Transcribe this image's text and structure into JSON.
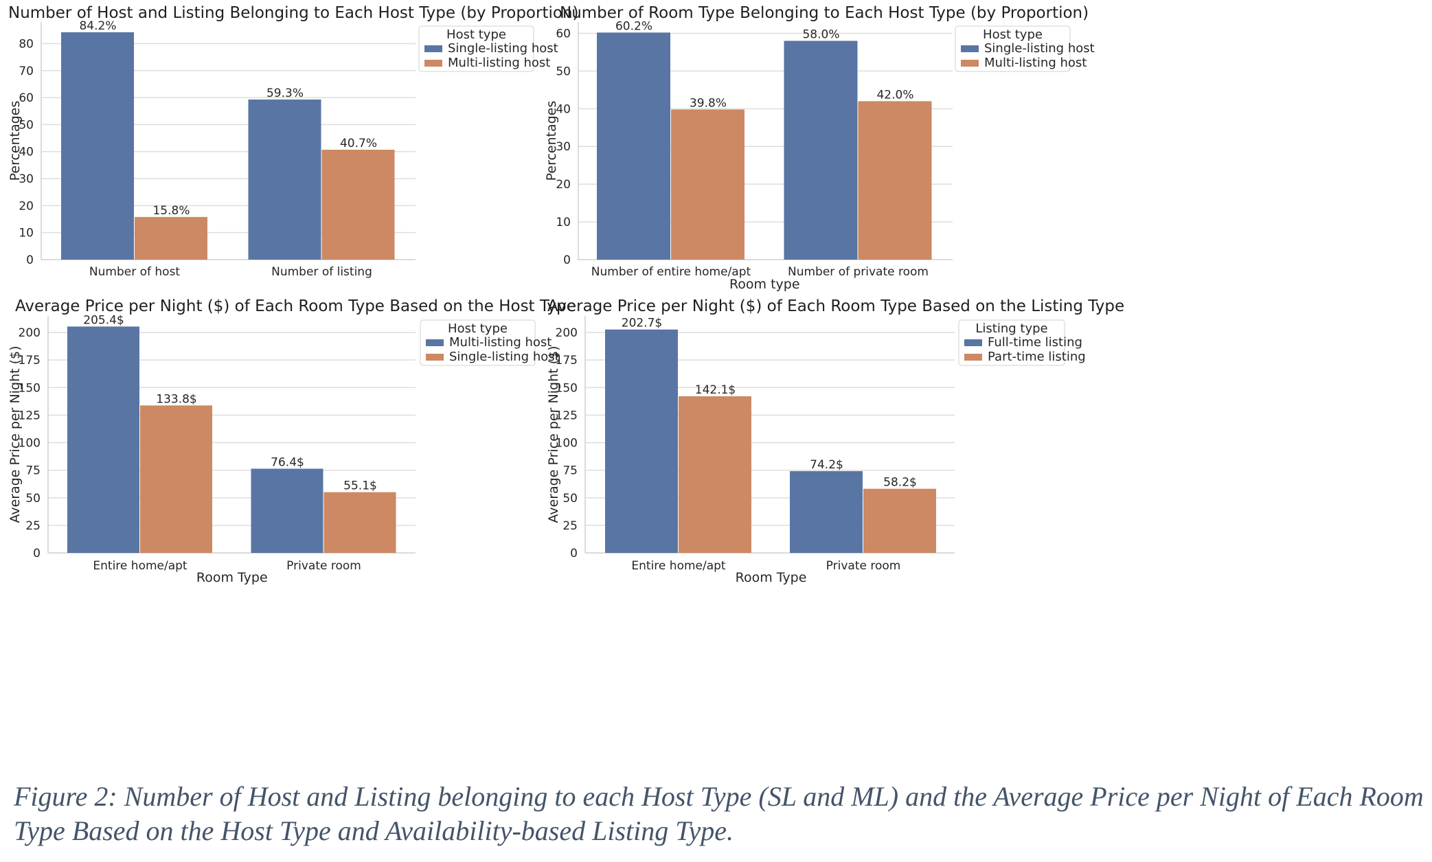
{
  "caption": "Figure 2: Number of Host and Listing belonging to each Host Type (SL and ML) and the Average Price per Night of Each Room Type Based on the Host Type and Availability-based Listing Type.",
  "colors": {
    "blue": "#5975a4",
    "orange": "#cc8963"
  },
  "chart_data": [
    {
      "type": "bar",
      "title": "Number of Host and Listing Belonging to Each Host Type (by Proportion)",
      "xlabel": "",
      "ylabel": "Percentages",
      "categories": [
        "Number of host",
        "Number of listing"
      ],
      "ylim": [
        0,
        88
      ],
      "yticks": [
        0,
        10,
        20,
        30,
        40,
        50,
        60,
        70,
        80
      ],
      "grid": true,
      "legend": {
        "title": "Host type",
        "placement": "top-right"
      },
      "series": [
        {
          "name": "Single-listing host",
          "values": [
            84.2,
            59.3
          ],
          "labels": [
            "84.2%",
            "59.3%"
          ]
        },
        {
          "name": "Multi-listing host",
          "values": [
            15.8,
            40.7
          ],
          "labels": [
            "15.8%",
            "40.7%"
          ]
        }
      ]
    },
    {
      "type": "bar",
      "title": "Number of Room Type Belonging to Each Host Type (by Proportion)",
      "xlabel": "Room type",
      "ylabel": "Percentages",
      "categories": [
        "Number of entire home/apt",
        "Number of private room"
      ],
      "ylim": [
        0,
        63
      ],
      "yticks": [
        0,
        10,
        20,
        30,
        40,
        50,
        60
      ],
      "grid": true,
      "legend": {
        "title": "Host type",
        "placement": "top-right"
      },
      "series": [
        {
          "name": "Single-listing host",
          "values": [
            60.2,
            58.0
          ],
          "labels": [
            "60.2%",
            "58.0%"
          ]
        },
        {
          "name": "Multi-listing host",
          "values": [
            39.8,
            42.0
          ],
          "labels": [
            "39.8%",
            "42.0%"
          ]
        }
      ]
    },
    {
      "type": "bar",
      "title": "Average Price per Night ($) of Each Room Type Based on the Host Type",
      "xlabel": "Room Type",
      "ylabel": "Average Price per Night ($)",
      "categories": [
        "Entire home/apt",
        "Private room"
      ],
      "ylim": [
        0,
        215
      ],
      "yticks": [
        0,
        25,
        50,
        75,
        100,
        125,
        150,
        175,
        200
      ],
      "grid": true,
      "legend": {
        "title": "Host type",
        "placement": "top-right"
      },
      "series": [
        {
          "name": "Multi-listing host",
          "values": [
            205.4,
            76.4
          ],
          "labels": [
            "205.4$",
            "76.4$"
          ]
        },
        {
          "name": "Single-listing host",
          "values": [
            133.8,
            55.1
          ],
          "labels": [
            "133.8$",
            "55.1$"
          ]
        }
      ]
    },
    {
      "type": "bar",
      "title": "Average Price per Night ($) of Each Room Type Based on the Listing Type",
      "xlabel": "Room Type",
      "ylabel": "Average Price per Night ($)",
      "categories": [
        "Entire home/apt",
        "Private room"
      ],
      "ylim": [
        0,
        215
      ],
      "yticks": [
        0,
        25,
        50,
        75,
        100,
        125,
        150,
        175,
        200
      ],
      "grid": true,
      "legend": {
        "title": "Listing type",
        "placement": "top-right"
      },
      "series": [
        {
          "name": "Full-time listing",
          "values": [
            202.7,
            74.2
          ],
          "labels": [
            "202.7$",
            "74.2$"
          ]
        },
        {
          "name": "Part-time listing",
          "values": [
            142.1,
            58.2
          ],
          "labels": [
            "142.1$",
            "58.2$"
          ]
        }
      ]
    }
  ]
}
